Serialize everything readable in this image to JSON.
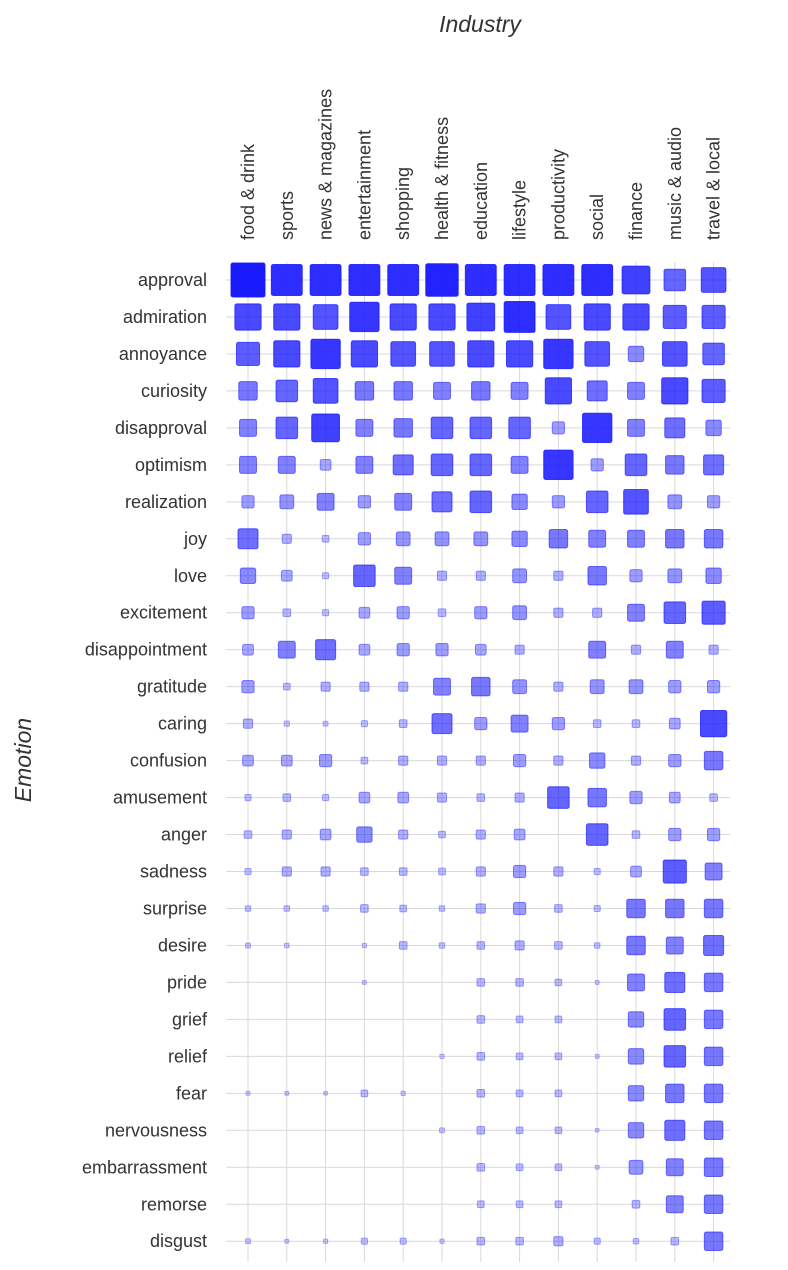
{
  "chart_data": {
    "type": "heatmap",
    "title": "",
    "xlabel": "Industry",
    "ylabel": "Emotion",
    "x_categories": [
      "food & drink",
      "sports",
      "news & magazines",
      "entertainment",
      "shopping",
      "health & fitness",
      "education",
      "lifestyle",
      "productivity",
      "social",
      "finance",
      "music & audio",
      "travel & local"
    ],
    "y_categories": [
      "approval",
      "admiration",
      "annoyance",
      "curiosity",
      "disapproval",
      "optimism",
      "realization",
      "joy",
      "love",
      "excitement",
      "disappointment",
      "gratitude",
      "caring",
      "confusion",
      "amusement",
      "anger",
      "sadness",
      "surprise",
      "desire",
      "pride",
      "grief",
      "relief",
      "fear",
      "nervousness",
      "embarrassment",
      "remorse",
      "disgust"
    ],
    "encoding": "square size and color opacity scale with value",
    "marker_color": "#1a1aff",
    "grid": true,
    "values": [
      [
        1.0,
        0.9,
        0.9,
        0.9,
        0.9,
        0.95,
        0.9,
        0.9,
        0.9,
        0.9,
        0.8,
        0.6,
        0.7
      ],
      [
        0.75,
        0.75,
        0.7,
        0.85,
        0.75,
        0.75,
        0.8,
        0.9,
        0.7,
        0.75,
        0.75,
        0.65,
        0.65
      ],
      [
        0.65,
        0.75,
        0.85,
        0.75,
        0.7,
        0.7,
        0.75,
        0.75,
        0.85,
        0.7,
        0.4,
        0.7,
        0.6
      ],
      [
        0.5,
        0.6,
        0.7,
        0.5,
        0.5,
        0.45,
        0.5,
        0.45,
        0.75,
        0.55,
        0.45,
        0.75,
        0.65
      ],
      [
        0.45,
        0.6,
        0.8,
        0.45,
        0.5,
        0.6,
        0.6,
        0.6,
        0.3,
        0.85,
        0.45,
        0.55,
        0.4
      ],
      [
        0.45,
        0.45,
        0.25,
        0.45,
        0.55,
        0.6,
        0.6,
        0.45,
        0.85,
        0.3,
        0.6,
        0.5,
        0.55
      ],
      [
        0.3,
        0.35,
        0.45,
        0.3,
        0.45,
        0.55,
        0.6,
        0.4,
        0.3,
        0.6,
        0.7,
        0.35,
        0.3
      ],
      [
        0.55,
        0.2,
        0.12,
        0.3,
        0.35,
        0.35,
        0.35,
        0.4,
        0.5,
        0.45,
        0.45,
        0.5,
        0.5
      ],
      [
        0.4,
        0.25,
        0.1,
        0.6,
        0.45,
        0.2,
        0.2,
        0.35,
        0.2,
        0.5,
        0.3,
        0.35,
        0.4
      ],
      [
        0.3,
        0.15,
        0.1,
        0.25,
        0.3,
        0.15,
        0.3,
        0.35,
        0.2,
        0.2,
        0.45,
        0.6,
        0.65
      ],
      [
        0.25,
        0.45,
        0.55,
        0.25,
        0.3,
        0.3,
        0.25,
        0.2,
        0.0,
        0.45,
        0.2,
        0.45,
        0.2
      ],
      [
        0.3,
        0.12,
        0.2,
        0.2,
        0.2,
        0.45,
        0.5,
        0.35,
        0.2,
        0.35,
        0.35,
        0.3,
        0.3
      ],
      [
        0.2,
        0.07,
        0.06,
        0.1,
        0.15,
        0.55,
        0.3,
        0.45,
        0.3,
        0.15,
        0.15,
        0.25,
        0.75
      ],
      [
        0.25,
        0.25,
        0.3,
        0.12,
        0.2,
        0.2,
        0.2,
        0.3,
        0.2,
        0.4,
        0.2,
        0.3,
        0.5
      ],
      [
        0.1,
        0.15,
        0.1,
        0.25,
        0.25,
        0.2,
        0.15,
        0.2,
        0.6,
        0.5,
        0.3,
        0.25,
        0.15
      ],
      [
        0.15,
        0.2,
        0.25,
        0.4,
        0.2,
        0.12,
        0.2,
        0.25,
        0.0,
        0.6,
        0.15,
        0.3,
        0.3
      ],
      [
        0.1,
        0.2,
        0.2,
        0.15,
        0.15,
        0.12,
        0.2,
        0.3,
        0.2,
        0.1,
        0.25,
        0.65,
        0.45
      ],
      [
        0.08,
        0.08,
        0.08,
        0.15,
        0.12,
        0.08,
        0.2,
        0.3,
        0.15,
        0.1,
        0.5,
        0.5,
        0.5
      ],
      [
        0.06,
        0.05,
        0.0,
        0.04,
        0.15,
        0.08,
        0.15,
        0.2,
        0.15,
        0.08,
        0.5,
        0.45,
        0.55
      ],
      [
        0.0,
        0.0,
        0.0,
        0.03,
        0.0,
        0.0,
        0.15,
        0.15,
        0.12,
        0.03,
        0.45,
        0.55,
        0.5
      ],
      [
        0.0,
        0.0,
        0.0,
        0.0,
        0.0,
        0.0,
        0.15,
        0.12,
        0.12,
        0.0,
        0.4,
        0.6,
        0.5
      ],
      [
        0.0,
        0.0,
        0.0,
        0.0,
        0.0,
        0.04,
        0.15,
        0.12,
        0.12,
        0.03,
        0.4,
        0.6,
        0.5
      ],
      [
        0.03,
        0.03,
        0.02,
        0.12,
        0.04,
        0.0,
        0.15,
        0.12,
        0.12,
        0.0,
        0.4,
        0.5,
        0.5
      ],
      [
        0.0,
        0.0,
        0.0,
        0.0,
        0.0,
        0.06,
        0.15,
        0.12,
        0.12,
        0.02,
        0.4,
        0.55,
        0.5
      ],
      [
        0.0,
        0.0,
        0.0,
        0.0,
        0.0,
        0.0,
        0.15,
        0.12,
        0.12,
        0.03,
        0.35,
        0.45,
        0.5
      ],
      [
        0.0,
        0.0,
        0.0,
        0.0,
        0.0,
        0.0,
        0.12,
        0.12,
        0.12,
        0.0,
        0.15,
        0.45,
        0.5
      ],
      [
        0.06,
        0.03,
        0.04,
        0.1,
        0.1,
        0.04,
        0.15,
        0.15,
        0.2,
        0.1,
        0.08,
        0.15,
        0.5
      ]
    ]
  }
}
